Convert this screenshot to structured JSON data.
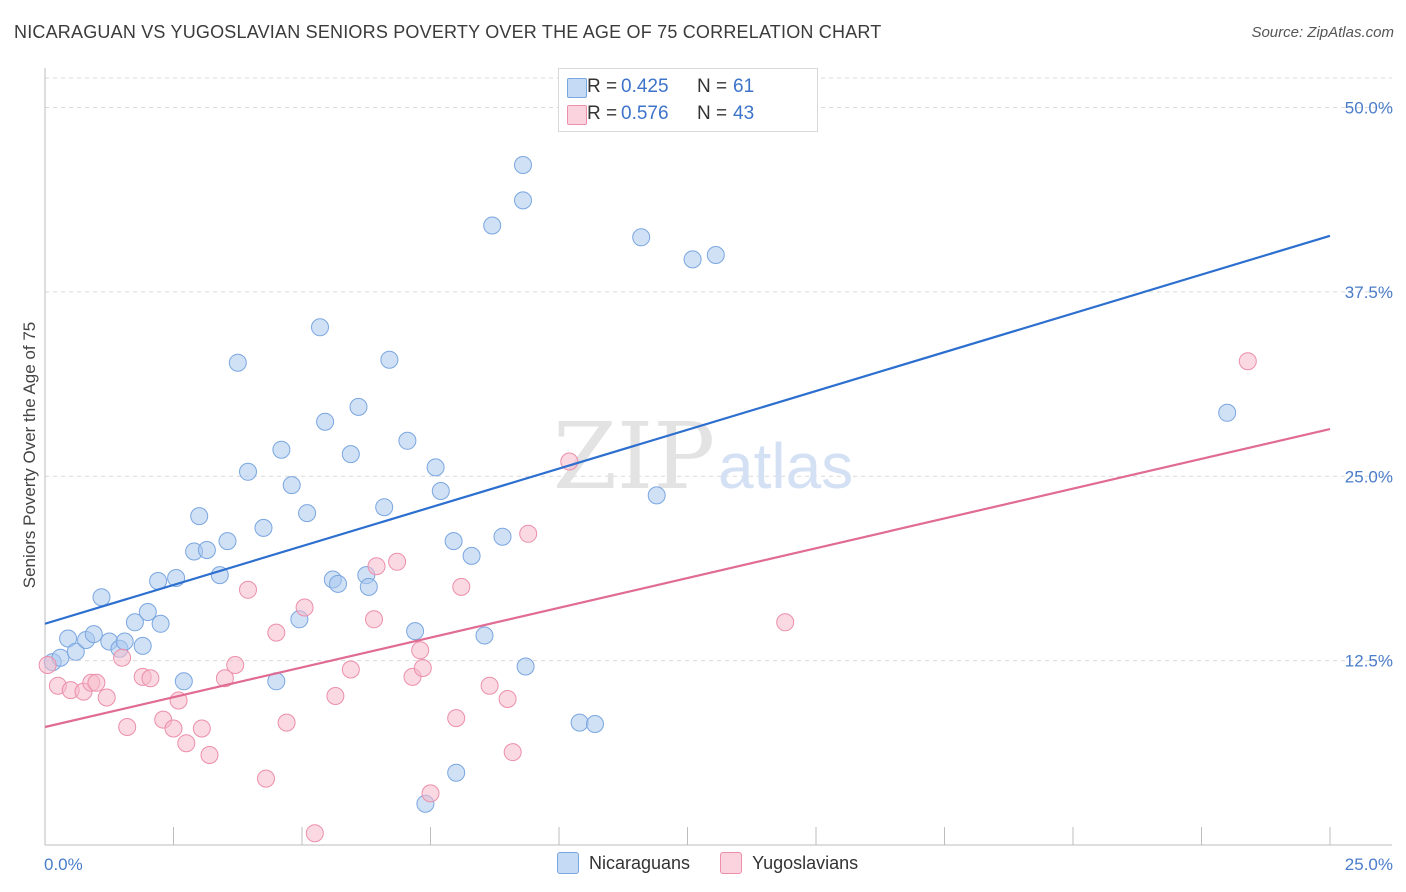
{
  "header": {
    "title": "NICARAGUAN VS YUGOSLAVIAN SENIORS POVERTY OVER THE AGE OF 75 CORRELATION CHART",
    "source": "Source: ZipAtlas.com"
  },
  "watermark": {
    "zip": "ZIP",
    "atlas": "atlas"
  },
  "legend": {
    "rows": [
      {
        "r_label": "R =",
        "r_value": "0.425",
        "n_label": "N =",
        "n_value": "61",
        "color": "#a9c8ef"
      },
      {
        "r_label": "R =",
        "r_value": "0.576",
        "n_label": "N =",
        "n_value": "43",
        "color": "#f6b9cb"
      }
    ]
  },
  "bottom_legend": {
    "items": [
      "Nicaraguans",
      "Yugoslavians"
    ]
  },
  "chart_data": {
    "type": "scatter",
    "ylabel": "Seniors Poverty Over the Age of 75",
    "xlim": [
      0,
      25
    ],
    "ylim": [
      0,
      52
    ],
    "x_ticks": [
      0,
      2.5,
      5,
      7.5,
      10,
      12.5,
      15,
      17.5,
      20,
      22.5,
      25
    ],
    "x_tick_labels": {
      "0": "0.0%",
      "25": "25.0%"
    },
    "y_ticks": [
      12.5,
      25,
      37.5,
      50
    ],
    "y_tick_labels": [
      "12.5%",
      "25.0%",
      "37.5%",
      "50.0%"
    ],
    "grid": "horizontal dashed",
    "series": [
      {
        "name": "Nicaraguans",
        "color": "#a9c8ef",
        "stroke": "#7aa6e0",
        "trend_color": "#2c6fcf",
        "trend": {
          "x": [
            0,
            25
          ],
          "y": [
            15.0,
            41.3
          ]
        },
        "points": [
          [
            0.15,
            12.4
          ],
          [
            0.3,
            12.7
          ],
          [
            0.45,
            14.0
          ],
          [
            0.6,
            13.1
          ],
          [
            0.8,
            13.9
          ],
          [
            0.95,
            14.3
          ],
          [
            1.1,
            16.8
          ],
          [
            1.25,
            13.8
          ],
          [
            1.45,
            13.3
          ],
          [
            1.55,
            13.8
          ],
          [
            1.75,
            15.1
          ],
          [
            1.9,
            13.5
          ],
          [
            2.0,
            15.8
          ],
          [
            2.25,
            15.0
          ],
          [
            2.2,
            17.9
          ],
          [
            2.55,
            18.1
          ],
          [
            2.7,
            11.1
          ],
          [
            2.9,
            19.9
          ],
          [
            3.0,
            22.3
          ],
          [
            3.15,
            20.0
          ],
          [
            3.4,
            18.3
          ],
          [
            3.55,
            20.6
          ],
          [
            3.75,
            32.7
          ],
          [
            3.95,
            25.3
          ],
          [
            4.25,
            21.5
          ],
          [
            4.5,
            11.1
          ],
          [
            4.6,
            26.8
          ],
          [
            4.8,
            24.4
          ],
          [
            4.95,
            15.3
          ],
          [
            5.1,
            22.5
          ],
          [
            5.35,
            35.1
          ],
          [
            5.45,
            28.7
          ],
          [
            5.6,
            18.0
          ],
          [
            5.7,
            17.7
          ],
          [
            5.95,
            26.5
          ],
          [
            6.1,
            29.7
          ],
          [
            6.25,
            18.3
          ],
          [
            6.3,
            17.5
          ],
          [
            6.6,
            22.9
          ],
          [
            6.7,
            32.9
          ],
          [
            7.05,
            27.4
          ],
          [
            7.2,
            14.5
          ],
          [
            7.6,
            25.6
          ],
          [
            7.7,
            24.0
          ],
          [
            7.4,
            2.8
          ],
          [
            7.95,
            20.6
          ],
          [
            8.0,
            4.9
          ],
          [
            8.3,
            19.6
          ],
          [
            8.55,
            14.2
          ],
          [
            8.7,
            42.0
          ],
          [
            8.9,
            20.9
          ],
          [
            9.3,
            46.1
          ],
          [
            9.3,
            43.7
          ],
          [
            9.35,
            12.1
          ],
          [
            10.4,
            8.3
          ],
          [
            10.7,
            8.2
          ],
          [
            11.6,
            41.2
          ],
          [
            11.9,
            23.7
          ],
          [
            12.6,
            39.7
          ],
          [
            13.05,
            40.0
          ],
          [
            23.0,
            29.3
          ]
        ]
      },
      {
        "name": "Yugoslavians",
        "color": "#f6b9cb",
        "stroke": "#ec8fab",
        "trend_color": "#e06b93",
        "trend": {
          "x": [
            0,
            25
          ],
          "y": [
            8.0,
            28.2
          ]
        },
        "points": [
          [
            0.25,
            10.8
          ],
          [
            0.5,
            10.5
          ],
          [
            0.75,
            10.4
          ],
          [
            0.9,
            11.0
          ],
          [
            1.0,
            11.0
          ],
          [
            1.2,
            10.0
          ],
          [
            1.5,
            12.7
          ],
          [
            1.6,
            8.0
          ],
          [
            1.9,
            11.4
          ],
          [
            2.05,
            11.3
          ],
          [
            2.3,
            8.5
          ],
          [
            2.5,
            7.9
          ],
          [
            2.6,
            9.8
          ],
          [
            2.75,
            6.9
          ],
          [
            3.05,
            7.9
          ],
          [
            3.2,
            6.1
          ],
          [
            3.5,
            11.3
          ],
          [
            3.7,
            12.2
          ],
          [
            3.95,
            17.3
          ],
          [
            4.3,
            4.5
          ],
          [
            4.5,
            14.4
          ],
          [
            4.7,
            8.3
          ],
          [
            5.05,
            16.1
          ],
          [
            5.25,
            0.8
          ],
          [
            5.65,
            10.1
          ],
          [
            5.95,
            11.9
          ],
          [
            6.4,
            15.3
          ],
          [
            6.45,
            18.9
          ],
          [
            6.85,
            19.2
          ],
          [
            7.15,
            11.4
          ],
          [
            7.35,
            12.0
          ],
          [
            7.3,
            13.2
          ],
          [
            7.5,
            3.5
          ],
          [
            8.0,
            8.6
          ],
          [
            8.1,
            17.5
          ],
          [
            8.65,
            10.8
          ],
          [
            9.0,
            9.9
          ],
          [
            9.1,
            6.3
          ],
          [
            9.4,
            21.1
          ],
          [
            10.2,
            26.0
          ],
          [
            14.4,
            15.1
          ],
          [
            23.4,
            32.8
          ],
          [
            0.05,
            12.2
          ]
        ]
      }
    ]
  }
}
